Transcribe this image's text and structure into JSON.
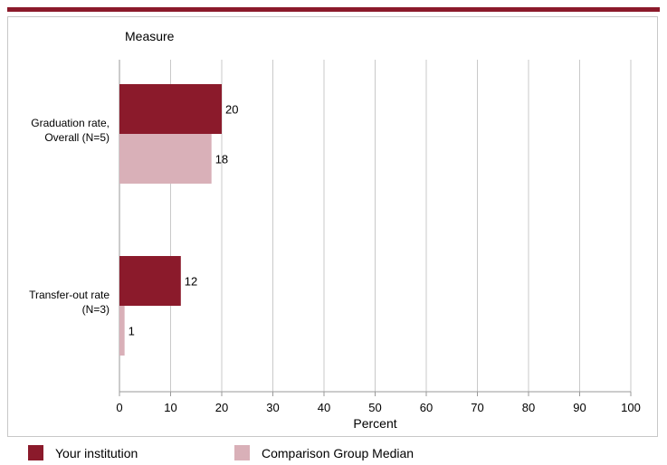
{
  "chart_data": {
    "type": "bar",
    "orientation": "horizontal",
    "title": "Measure",
    "xlabel": "Percent",
    "xlim": [
      0,
      100
    ],
    "xticks": [
      "0",
      "10",
      "20",
      "30",
      "40",
      "50",
      "60",
      "70",
      "80",
      "90",
      "100"
    ],
    "grid": true,
    "legend_position": "bottom",
    "categories": [
      [
        "Graduation rate,",
        "Overall (N=5)"
      ],
      [
        "Transfer-out rate",
        "(N=3)"
      ]
    ],
    "series": [
      {
        "name": "Your institution",
        "color": "#8b1a2b",
        "values": [
          20,
          12
        ]
      },
      {
        "name": "Comparison Group Median",
        "color": "#d9b0b8",
        "values": [
          18,
          1
        ]
      }
    ]
  }
}
